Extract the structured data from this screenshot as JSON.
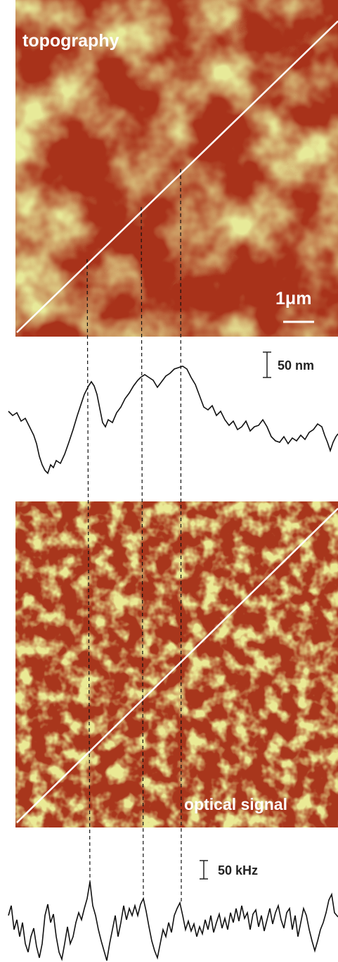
{
  "panels": {
    "topography_label": "topography",
    "scale_bar_label": "1μm",
    "height_scale_label": "50 nm",
    "optical_label": "optical signal",
    "frequency_scale_label": "50 kHz"
  }
}
